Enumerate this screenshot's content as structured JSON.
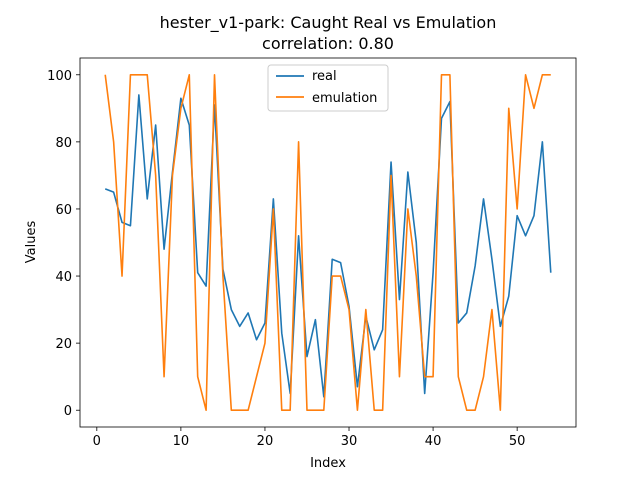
{
  "chart_data": {
    "type": "line",
    "title": "hester_v1-park: Caught Real vs Emulation",
    "subtitle": "correlation: 0.80",
    "xlabel": "Index",
    "ylabel": "Values",
    "xlim": [
      -2,
      57
    ],
    "ylim": [
      -5,
      105
    ],
    "xticks": [
      0,
      10,
      20,
      30,
      40,
      50
    ],
    "yticks": [
      0,
      20,
      40,
      60,
      80,
      100
    ],
    "legend_position": "top-center",
    "grid": false,
    "series": [
      {
        "name": "real",
        "color": "#1f77b4",
        "x": [
          1,
          2,
          3,
          4,
          5,
          6,
          7,
          8,
          9,
          10,
          11,
          12,
          13,
          14,
          15,
          16,
          17,
          18,
          19,
          20,
          21,
          22,
          23,
          24,
          25,
          26,
          27,
          28,
          29,
          30,
          31,
          32,
          33,
          34,
          35,
          36,
          37,
          38,
          39,
          40,
          41,
          42,
          43,
          44,
          45,
          46,
          47,
          48,
          49,
          50,
          51,
          52,
          53,
          54
        ],
        "values": [
          66,
          65,
          56,
          55,
          94,
          63,
          85,
          48,
          71,
          93,
          85,
          41,
          37,
          91,
          42,
          30,
          25,
          29,
          21,
          26,
          63,
          23,
          5,
          52,
          16,
          27,
          4,
          45,
          44,
          31,
          7,
          28,
          18,
          24,
          74,
          33,
          71,
          50,
          5,
          41,
          87,
          92,
          26,
          29,
          43,
          63,
          45,
          25,
          34,
          58,
          52,
          58,
          80,
          41
        ]
      },
      {
        "name": "emulation",
        "color": "#ff7f0e",
        "x": [
          1,
          2,
          3,
          4,
          5,
          6,
          7,
          8,
          9,
          10,
          11,
          12,
          13,
          14,
          15,
          16,
          17,
          18,
          19,
          20,
          21,
          22,
          23,
          24,
          25,
          26,
          27,
          28,
          29,
          30,
          31,
          32,
          33,
          34,
          35,
          36,
          37,
          38,
          39,
          40,
          41,
          42,
          43,
          44,
          45,
          46,
          47,
          48,
          49,
          50,
          51,
          52,
          53,
          54
        ],
        "values": [
          100,
          80,
          40,
          100,
          100,
          100,
          70,
          10,
          70,
          90,
          100,
          10,
          0,
          100,
          40,
          0,
          0,
          0,
          10,
          20,
          60,
          0,
          0,
          80,
          0,
          0,
          0,
          40,
          40,
          30,
          0,
          30,
          0,
          0,
          70,
          10,
          60,
          40,
          10,
          10,
          100,
          100,
          10,
          0,
          0,
          10,
          30,
          0,
          90,
          60,
          100,
          90,
          100,
          100
        ]
      }
    ]
  }
}
